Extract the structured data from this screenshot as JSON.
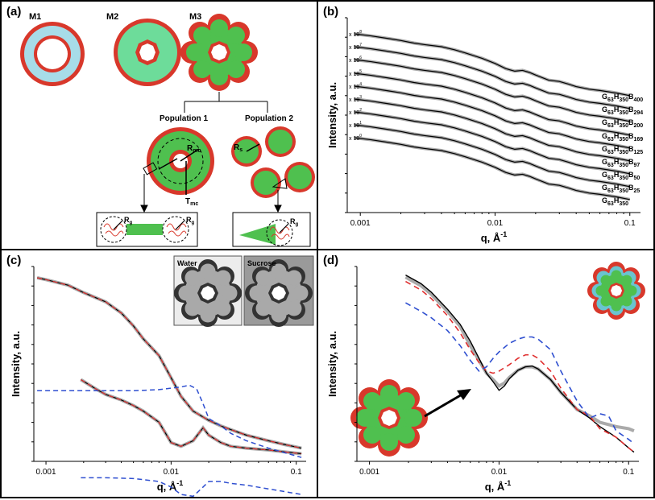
{
  "panels": {
    "a": {
      "label": "(a)",
      "models": [
        "M1",
        "M2",
        "M3"
      ],
      "populations": [
        "Population 1",
        "Population 2"
      ],
      "annotations": {
        "r_core": "R",
        "r_core_sub": "mc",
        "t_shell": "T",
        "t_shell_sub": "mc",
        "rg": "R",
        "rg_sub": "g",
        "rs": "R",
        "rs_sub": "s"
      }
    },
    "b": {
      "label": "(b)"
    },
    "c": {
      "label": "(c)",
      "insets": [
        "Water",
        "Sucrose"
      ]
    },
    "d": {
      "label": "(d)"
    }
  },
  "colors": {
    "red": "#d8382b",
    "green": "#4fc04f",
    "light_green": "#6ddc9a",
    "light_blue": "#a7dce8",
    "gray_particle": "#a9a9a9",
    "dash_red": "#e03030",
    "dash_blue": "#2f4fd0"
  },
  "chart_data": [
    {
      "id": "b",
      "type": "line",
      "xscale": "log",
      "yscale": "log",
      "xlabel": "q, Å",
      "xlabel_sup": "-1",
      "ylabel": "Intensity, a.u.",
      "xticks": [
        "0.001",
        "0.01",
        "0.1"
      ],
      "xlim": [
        0.0008,
        0.12
      ],
      "offset_labels": [
        "x 10",
        "x 10",
        "x 10",
        "x 10",
        "x 10",
        "x 10",
        "x 10",
        "x 10",
        "x 10"
      ],
      "offset_exponents": [
        "8",
        "7",
        "6",
        "5",
        "4",
        "3",
        "2",
        "1",
        "0"
      ],
      "series": [
        {
          "name": "G63H350B400",
          "label_main": "G",
          "label_parts": [
            [
              "63",
              "H"
            ],
            [
              "350",
              "B"
            ],
            [
              "400",
              ""
            ]
          ]
        },
        {
          "name": "G63H350B294",
          "label_main": "G",
          "label_parts": [
            [
              "63",
              "H"
            ],
            [
              "350",
              "B"
            ],
            [
              "294",
              ""
            ]
          ]
        },
        {
          "name": "G63H350B200",
          "label_main": "G",
          "label_parts": [
            [
              "63",
              "H"
            ],
            [
              "350",
              "B"
            ],
            [
              "200",
              ""
            ]
          ]
        },
        {
          "name": "G63H350B169",
          "label_main": "G",
          "label_parts": [
            [
              "63",
              "H"
            ],
            [
              "350",
              "B"
            ],
            [
              "169",
              ""
            ]
          ]
        },
        {
          "name": "G63H350B125",
          "label_main": "G",
          "label_parts": [
            [
              "63",
              "H"
            ],
            [
              "350",
              "B"
            ],
            [
              "125",
              ""
            ]
          ]
        },
        {
          "name": "G63H350B97",
          "label_main": "G",
          "label_parts": [
            [
              "63",
              "H"
            ],
            [
              "350",
              "B"
            ],
            [
              "97",
              ""
            ]
          ]
        },
        {
          "name": "G63H350B50",
          "label_main": "G",
          "label_parts": [
            [
              "63",
              "H"
            ],
            [
              "350",
              "B"
            ],
            [
              "50",
              ""
            ]
          ]
        },
        {
          "name": "G63H350B25",
          "label_main": "G",
          "label_parts": [
            [
              "63",
              "H"
            ],
            [
              "350",
              "B"
            ],
            [
              "25",
              ""
            ]
          ]
        },
        {
          "name": "G63H350",
          "label_main": "G",
          "label_parts": [
            [
              "63",
              "H"
            ],
            [
              "350",
              ""
            ]
          ]
        }
      ],
      "q": [
        0.0009,
        0.0012,
        0.0016,
        0.002,
        0.0025,
        0.003,
        0.004,
        0.005,
        0.006,
        0.008,
        0.01,
        0.012,
        0.014,
        0.016,
        0.018,
        0.02,
        0.025,
        0.03,
        0.035,
        0.04,
        0.05,
        0.06,
        0.08,
        0.1
      ],
      "shape_decades": [
        0,
        -0.08,
        -0.18,
        -0.26,
        -0.36,
        -0.42,
        -0.5,
        -0.62,
        -0.74,
        -0.95,
        -1.15,
        -1.35,
        -1.45,
        -1.42,
        -1.5,
        -1.6,
        -1.8,
        -1.85,
        -1.95,
        -2.05,
        -2.15,
        -2.2,
        -2.3,
        -2.4
      ]
    },
    {
      "id": "c",
      "type": "line",
      "xscale": "log",
      "yscale": "log",
      "xlabel": "q, Å",
      "xlabel_sup": "-1",
      "ylabel": "Intensity, a.u.",
      "xticks": [
        "0.001",
        "0.01",
        "0.1"
      ],
      "xlim": [
        0.0008,
        0.12
      ],
      "series": [
        {
          "style": "data-upper",
          "q": [
            0.00085,
            0.001,
            0.0015,
            0.002,
            0.003,
            0.004,
            0.005,
            0.006,
            0.008,
            0.01,
            0.012,
            0.015,
            0.02,
            0.025,
            0.03,
            0.04,
            0.06,
            0.08,
            0.11
          ],
          "logI": [
            4.0,
            3.95,
            3.8,
            3.6,
            3.35,
            3.05,
            2.7,
            2.35,
            1.9,
            1.3,
            0.8,
            0.4,
            0.15,
            0.0,
            -0.1,
            -0.25,
            -0.4,
            -0.5,
            -0.6
          ]
        },
        {
          "style": "data-lower",
          "q": [
            0.0019,
            0.0025,
            0.003,
            0.004,
            0.005,
            0.006,
            0.008,
            0.01,
            0.012,
            0.015,
            0.018,
            0.02,
            0.025,
            0.03,
            0.04,
            0.06,
            0.08,
            0.11
          ],
          "logI": [
            1.25,
            1.0,
            0.85,
            0.7,
            0.55,
            0.4,
            0.1,
            -0.45,
            -0.55,
            -0.4,
            -0.05,
            -0.25,
            -0.45,
            -0.55,
            -0.6,
            -0.65,
            -0.7,
            -0.75
          ]
        },
        {
          "style": "dash-blue-mid",
          "q": [
            0.00085,
            0.002,
            0.005,
            0.008,
            0.01,
            0.012,
            0.014,
            0.016,
            0.018,
            0.02,
            0.025,
            0.03,
            0.04,
            0.06,
            0.11
          ],
          "logI": [
            0.95,
            0.95,
            0.95,
            0.98,
            1.02,
            1.05,
            1.1,
            1.0,
            0.6,
            0.2,
            0.0,
            -0.2,
            -0.4,
            -0.6,
            -0.85
          ]
        },
        {
          "style": "dash-blue-low",
          "q": [
            0.0019,
            0.003,
            0.005,
            0.008,
            0.01,
            0.012,
            0.015,
            0.018,
            0.02,
            0.025,
            0.03,
            0.04,
            0.06,
            0.11
          ],
          "logI": [
            -1.4,
            -1.4,
            -1.42,
            -1.5,
            -1.65,
            -1.85,
            -1.9,
            -1.65,
            -1.5,
            -1.5,
            -1.55,
            -1.6,
            -1.7,
            -1.85
          ]
        }
      ]
    },
    {
      "id": "d",
      "type": "line",
      "xscale": "log",
      "yscale": "log",
      "xlabel": "q, Å",
      "xlabel_sup": "-1",
      "ylabel": "Intensity, a.u.",
      "xticks": [
        "0.001",
        "0.01",
        "0.1"
      ],
      "xlim": [
        0.0008,
        0.12
      ],
      "series": [
        {
          "style": "data",
          "q": [
            0.0019,
            0.0025,
            0.003,
            0.004,
            0.005,
            0.006,
            0.007,
            0.008,
            0.009,
            0.01,
            0.011,
            0.012,
            0.014,
            0.016,
            0.018,
            0.02,
            0.025,
            0.03,
            0.04,
            0.05,
            0.06,
            0.08,
            0.1,
            0.11
          ],
          "logI": [
            3.3,
            3.1,
            2.9,
            2.5,
            2.15,
            1.7,
            1.35,
            1.05,
            0.9,
            0.75,
            0.82,
            0.95,
            1.12,
            1.2,
            1.2,
            1.15,
            0.9,
            0.6,
            0.2,
            0.05,
            -0.1,
            -0.2,
            -0.25,
            -0.3
          ]
        },
        {
          "style": "fit-black",
          "q": [
            0.0019,
            0.0025,
            0.003,
            0.004,
            0.005,
            0.006,
            0.007,
            0.008,
            0.009,
            0.01,
            0.011,
            0.012,
            0.014,
            0.016,
            0.018,
            0.02,
            0.025,
            0.03,
            0.04,
            0.05,
            0.06,
            0.08,
            0.1,
            0.11
          ],
          "logI": [
            3.35,
            3.15,
            2.95,
            2.55,
            2.2,
            1.8,
            1.4,
            1.05,
            0.85,
            0.65,
            0.75,
            0.92,
            1.12,
            1.2,
            1.22,
            1.15,
            0.9,
            0.6,
            0.2,
            0.0,
            -0.2,
            -0.45,
            -0.7,
            -0.8
          ]
        },
        {
          "style": "dash-red",
          "q": [
            0.0019,
            0.0025,
            0.003,
            0.004,
            0.005,
            0.006,
            0.007,
            0.008,
            0.009,
            0.01,
            0.012,
            0.014,
            0.016,
            0.018,
            0.02,
            0.025,
            0.03,
            0.04,
            0.05,
            0.06,
            0.08,
            0.1,
            0.11
          ],
          "logI": [
            3.2,
            3.0,
            2.8,
            2.4,
            2.0,
            1.6,
            1.3,
            1.1,
            1.05,
            1.1,
            1.25,
            1.4,
            1.48,
            1.48,
            1.4,
            1.1,
            0.7,
            0.2,
            0.05,
            -0.25,
            -0.45,
            -0.7,
            -0.8
          ]
        },
        {
          "style": "dash-blue",
          "q": [
            0.0019,
            0.0025,
            0.003,
            0.004,
            0.005,
            0.006,
            0.007,
            0.008,
            0.009,
            0.01,
            0.012,
            0.014,
            0.016,
            0.018,
            0.02,
            0.025,
            0.03,
            0.04,
            0.05,
            0.06,
            0.07,
            0.08,
            0.1,
            0.11
          ],
          "logI": [
            2.7,
            2.5,
            2.35,
            2.05,
            1.7,
            1.35,
            1.1,
            1.2,
            1.4,
            1.55,
            1.75,
            1.85,
            1.9,
            1.9,
            1.85,
            1.6,
            1.1,
            0.4,
            0.0,
            0.1,
            0.05,
            -0.3,
            -0.5,
            -0.6
          ]
        }
      ]
    }
  ]
}
